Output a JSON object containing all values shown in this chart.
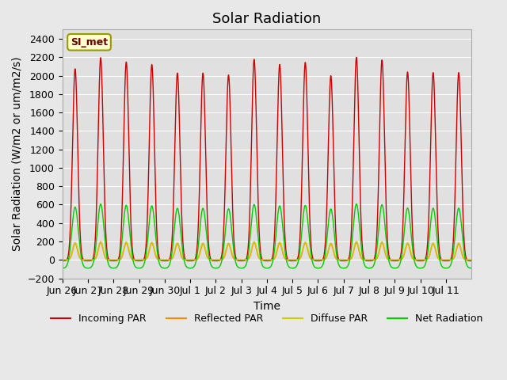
{
  "title": "Solar Radiation",
  "ylabel": "Solar Radiation (W/m2 or um/m2/s)",
  "xlabel": "Time",
  "ylim": [
    -200,
    2500
  ],
  "yticks": [
    -200,
    0,
    200,
    400,
    600,
    800,
    1000,
    1200,
    1400,
    1600,
    1800,
    2000,
    2200,
    2400
  ],
  "background_color": "#e8e8e8",
  "plot_bg_color": "#e0e0e0",
  "label_box_text": "SI_met",
  "label_box_facecolor": "#ffffcc",
  "label_box_edgecolor": "#999900",
  "colors": {
    "incoming": "#cc0000",
    "reflected": "#ff8800",
    "diffuse": "#cccc00",
    "net": "#00cc00"
  },
  "legend_labels": [
    "Incoming PAR",
    "Reflected PAR",
    "Diffuse PAR",
    "Net Radiation"
  ],
  "n_days": 16,
  "peak_incoming": 2100,
  "peak_reflected": 180,
  "peak_diffuse": 190,
  "peak_net": 580,
  "night_val_incoming": -10,
  "night_val_net": -90,
  "night_val_reflected": 0,
  "night_val_diffuse": 0,
  "tick_labels": [
    "Jun 26",
    "Jun 27",
    "Jun 28",
    "Jun 29",
    "Jun 30",
    "Jul 1",
    "Jul 2",
    "Jul 3",
    "Jul 4",
    "Jul 5",
    "Jul 6",
    "Jul 7",
    "Jul 8",
    "Jul 9",
    "Jul 10",
    "Jul 11"
  ],
  "title_fontsize": 13,
  "axis_fontsize": 10,
  "tick_fontsize": 9
}
